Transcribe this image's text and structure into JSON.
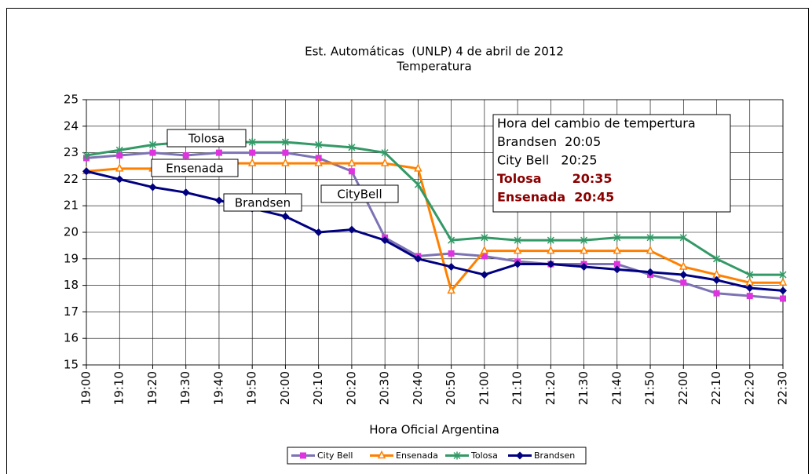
{
  "chart_data": {
    "type": "line",
    "title": "Est. Automáticas  (UNLP) 4 de abril de 2012",
    "subtitle": "Temperatura",
    "x_label": "Hora Oficial Argentina",
    "categories": [
      "19:00",
      "19:10",
      "19:20",
      "19:30",
      "19:40",
      "19:50",
      "20:00",
      "20:10",
      "20:20",
      "20:30",
      "20:40",
      "20:50",
      "21:00",
      "21:10",
      "21:20",
      "21:30",
      "21:40",
      "21:50",
      "22:00",
      "22:10",
      "22:20",
      "22:30"
    ],
    "series": [
      {
        "name": "City Bell",
        "color": "#7b73b3",
        "marker_color": "#e033e0",
        "marker": "square",
        "values": [
          22.8,
          22.9,
          23.0,
          22.9,
          23.0,
          23.0,
          23.0,
          22.8,
          22.3,
          19.8,
          19.1,
          19.2,
          19.1,
          18.9,
          18.8,
          18.8,
          18.8,
          18.4,
          18.1,
          17.7,
          17.6,
          17.5
        ]
      },
      {
        "name": "Ensenada",
        "color": "#ff8000",
        "marker_color": "#ff8000",
        "marker": "triangle",
        "values": [
          22.3,
          22.4,
          22.4,
          22.6,
          22.6,
          22.6,
          22.6,
          22.6,
          22.6,
          22.6,
          22.4,
          17.8,
          19.3,
          19.3,
          19.3,
          19.3,
          19.3,
          19.3,
          18.7,
          18.4,
          18.1,
          18.1
        ]
      },
      {
        "name": "Tolosa",
        "color": "#339966",
        "marker_color": "#339966",
        "marker": "star",
        "values": [
          22.9,
          23.1,
          23.3,
          23.4,
          23.4,
          23.4,
          23.4,
          23.3,
          23.2,
          23.0,
          21.8,
          19.7,
          19.8,
          19.7,
          19.7,
          19.7,
          19.8,
          19.8,
          19.8,
          19.0,
          18.4,
          18.4
        ]
      },
      {
        "name": "Brandsen",
        "color": "#000080",
        "marker_color": "#000080",
        "marker": "diamond",
        "values": [
          22.3,
          22.0,
          21.7,
          21.5,
          21.2,
          20.9,
          20.6,
          20.0,
          20.1,
          19.7,
          19.0,
          18.7,
          18.4,
          18.8,
          18.8,
          18.7,
          18.6,
          18.5,
          18.4,
          18.2,
          17.9,
          17.8
        ]
      }
    ],
    "ylim": [
      15,
      25
    ],
    "yticks": [
      15,
      16,
      17,
      18,
      19,
      20,
      21,
      22,
      23,
      24,
      25
    ],
    "grid": true,
    "legend": "bottom",
    "annotations": [
      {
        "text": "Tolosa"
      },
      {
        "text": "Ensenada"
      },
      {
        "text": "Brandsen"
      },
      {
        "text": "CityBell"
      }
    ],
    "info_box": {
      "lines": [
        {
          "text": "Hora del cambio de tempertura",
          "bold": false,
          "color": "#000000"
        },
        {
          "text": "Brandsen  20:05",
          "bold": false,
          "color": "#000000"
        },
        {
          "text": "City Bell   20:25",
          "bold": false,
          "color": "#000000"
        },
        {
          "text": "Tolosa       20:35",
          "bold": true,
          "color": "#8b0000"
        },
        {
          "text": "Ensenada  20:45",
          "bold": true,
          "color": "#8b0000"
        }
      ]
    }
  }
}
